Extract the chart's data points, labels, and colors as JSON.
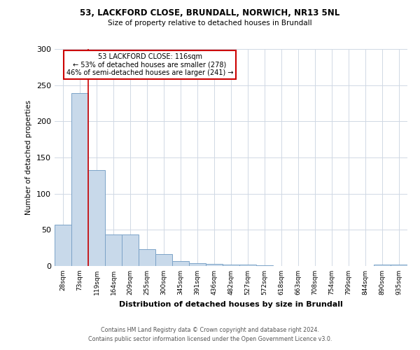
{
  "title_line1": "53, LACKFORD CLOSE, BRUNDALL, NORWICH, NR13 5NL",
  "title_line2": "Size of property relative to detached houses in Brundall",
  "xlabel": "Distribution of detached houses by size in Brundall",
  "ylabel": "Number of detached properties",
  "footnote1": "Contains HM Land Registry data © Crown copyright and database right 2024.",
  "footnote2": "Contains public sector information licensed under the Open Government Licence v3.0.",
  "bar_labels": [
    "28sqm",
    "73sqm",
    "119sqm",
    "164sqm",
    "209sqm",
    "255sqm",
    "300sqm",
    "345sqm",
    "391sqm",
    "436sqm",
    "482sqm",
    "527sqm",
    "572sqm",
    "618sqm",
    "663sqm",
    "708sqm",
    "754sqm",
    "799sqm",
    "844sqm",
    "890sqm",
    "935sqm"
  ],
  "bar_values": [
    57,
    239,
    133,
    44,
    44,
    23,
    16,
    7,
    4,
    3,
    2,
    2,
    1,
    0,
    0,
    0,
    0,
    0,
    0,
    2,
    2
  ],
  "bar_color": "#c8d9ea",
  "bar_edge_color": "#7ba3c8",
  "vline_color": "#cc0000",
  "annotation_title": "53 LACKFORD CLOSE: 116sqm",
  "annotation_line2": "← 53% of detached houses are smaller (278)",
  "annotation_line3": "46% of semi-detached houses are larger (241) →",
  "annotation_box_edge": "#cc0000",
  "ylim": [
    0,
    300
  ],
  "yticks": [
    0,
    50,
    100,
    150,
    200,
    250,
    300
  ],
  "background_color": "#ffffff",
  "grid_color": "#d0d8e4"
}
